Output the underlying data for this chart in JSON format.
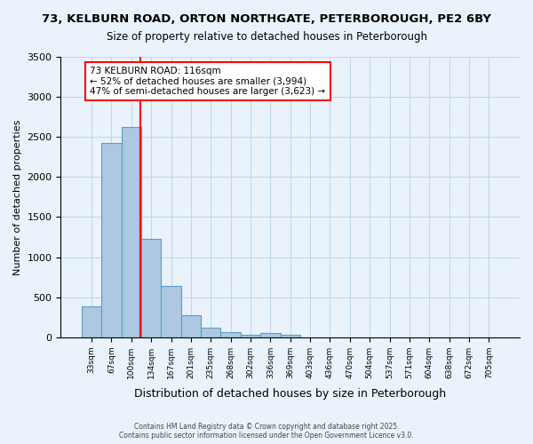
{
  "title_line1": "73, KELBURN ROAD, ORTON NORTHGATE, PETERBOROUGH, PE2 6BY",
  "title_line2": "Size of property relative to detached houses in Peterborough",
  "xlabel": "Distribution of detached houses by size in Peterborough",
  "ylabel": "Number of detached properties",
  "bins": [
    "33sqm",
    "67sqm",
    "100sqm",
    "134sqm",
    "167sqm",
    "201sqm",
    "235sqm",
    "268sqm",
    "302sqm",
    "336sqm",
    "369sqm",
    "403sqm",
    "436sqm",
    "470sqm",
    "504sqm",
    "537sqm",
    "571sqm",
    "604sqm",
    "638sqm",
    "672sqm",
    "705sqm"
  ],
  "bar_heights": [
    390,
    2420,
    2620,
    1230,
    640,
    280,
    125,
    65,
    35,
    50,
    35,
    0,
    0,
    0,
    0,
    0,
    0,
    0,
    0,
    0,
    0
  ],
  "bar_color": "#adc8e0",
  "bar_edge_color": "#5a9ec9",
  "vline_color": "red",
  "annotation_text": "73 KELBURN ROAD: 116sqm\n← 52% of detached houses are smaller (3,994)\n47% of semi-detached houses are larger (3,623) →",
  "annotation_box_color": "white",
  "annotation_border_color": "red",
  "ylim": [
    0,
    3500
  ],
  "grid_color": "#c0d8f0",
  "footer_text": "Contains HM Land Registry data © Crown copyright and database right 2025.\nContains public sector information licensed under the Open Government Licence v3.0.",
  "background_color": "#eaf3fb",
  "plot_bg_color": "#eaf3fb"
}
